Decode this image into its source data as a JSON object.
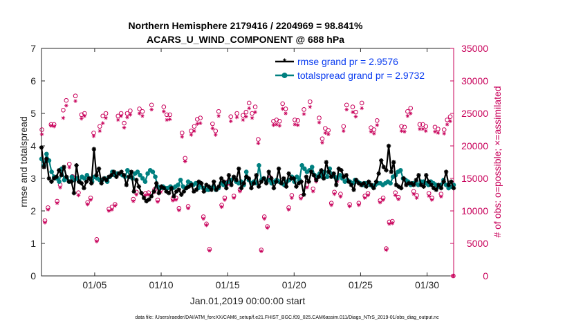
{
  "chart_data": {
    "type": "line",
    "title_line1": "Northern Hemisphere 2179416 / 2204969 = 98.841%",
    "title_line2": "ACARS_U_WIND_COMPONENT @ 688 hPa",
    "xlabel": "Jan.01,2019 00:00:00 start",
    "ylabel_left": "rmse and totalspread",
    "ylabel_right": "# of obs: o=possible; ×=assimilated",
    "x_range": [
      1.0,
      32.0
    ],
    "x_ticks": [
      5,
      10,
      15,
      20,
      25,
      30
    ],
    "x_tick_labels": [
      "01/05",
      "01/10",
      "01/15",
      "01/20",
      "01/25",
      "01/30"
    ],
    "ylim_left": [
      0,
      7
    ],
    "yticks_left": [
      "0",
      "1",
      "2",
      "3",
      "4",
      "5",
      "6",
      "7"
    ],
    "ylim_right": [
      0,
      35000
    ],
    "yticks_right": [
      "0",
      "5000",
      "10000",
      "15000",
      "20000",
      "25000",
      "30000",
      "35000"
    ],
    "left_color": "#262626",
    "right_color": "#c8005a",
    "legend_color": "#0a3cf0",
    "legend_position": "top-right",
    "footer": "data file: /Users/raeder/DAI/ATM_forcXX/CAM6_setup/f.e21.FHIST_BGC.f09_025.CAM6assim.011/Diags_NTrS_2019-01/obs_diag_output.nc",
    "series": [
      {
        "name": "rmse grand pr = 2.9576",
        "color": "#000000",
        "marker": "asterisk",
        "values": [
          3.95,
          3.35,
          3.6,
          3.0,
          2.9,
          3.0,
          3.05,
          3.25,
          3.1,
          3.35,
          3.05,
          2.9,
          2.9,
          2.55,
          3.4,
          2.9,
          2.85,
          2.7,
          2.9,
          3.0,
          2.85,
          3.9,
          3.1,
          3.3,
          2.85,
          3.0,
          2.95,
          3.05,
          3.1,
          3.2,
          3.05,
          3.15,
          3.2,
          3.1,
          2.8,
          3.05,
          3.2,
          2.6,
          2.95,
          2.75,
          2.55,
          2.4,
          2.3,
          2.35,
          2.45,
          2.6,
          2.85,
          2.55,
          2.75,
          2.7,
          2.6,
          2.55,
          2.7,
          2.45,
          2.6,
          2.65,
          2.5,
          2.6,
          2.7,
          2.75,
          2.8,
          2.6,
          2.65,
          2.9,
          2.85,
          2.6,
          2.8,
          2.75,
          2.65,
          2.9,
          2.65,
          2.75,
          3.0,
          2.9,
          2.7,
          3.1,
          2.8,
          3.05,
          2.95,
          3.3,
          2.7,
          2.85,
          3.05,
          3.0,
          2.7,
          2.85,
          3.1,
          2.75,
          2.9,
          3.0,
          2.85,
          3.2,
          3.0,
          2.7,
          2.9,
          3.3,
          2.85,
          3.0,
          2.75,
          3.15,
          3.0,
          3.0,
          2.75,
          2.85,
          2.9,
          2.5,
          3.05,
          2.9,
          3.2,
          3.1,
          2.95,
          3.05,
          3.25,
          3.0,
          3.5,
          3.2,
          3.05,
          3.15,
          2.8,
          3.3,
          3.25,
          3.05,
          3.1,
          2.9,
          2.8,
          2.65,
          2.95,
          2.85,
          2.8,
          2.85,
          2.75,
          2.9,
          2.8,
          2.7,
          2.9,
          3.15,
          3.55,
          3.35,
          3.25,
          4.0,
          3.2,
          3.5,
          2.8,
          2.75,
          2.7,
          3.0,
          2.8,
          2.85,
          2.85,
          2.8,
          2.95,
          3.1,
          2.8,
          2.75,
          3.1,
          2.9,
          2.8,
          2.7,
          2.65,
          2.8,
          2.7,
          2.9,
          3.2,
          2.8,
          2.9,
          2.7
        ]
      },
      {
        "name": "totalspread grand pr = 2.9732",
        "color": "#008080",
        "marker": "circle",
        "values": [
          3.6,
          3.4,
          3.75,
          3.55,
          3.2,
          3.05,
          3.0,
          2.9,
          3.3,
          2.95,
          3.0,
          2.9,
          3.05,
          2.95,
          3.0,
          2.9,
          3.05,
          3.0,
          3.1,
          3.0,
          2.9,
          3.05,
          3.0,
          2.95,
          2.95,
          3.0,
          2.9,
          3.05,
          3.2,
          3.1,
          3.15,
          3.15,
          3.1,
          3.05,
          3.25,
          3.05,
          3.0,
          3.15,
          3.2,
          3.1,
          3.0,
          2.9,
          3.15,
          3.25,
          3.2,
          3.05,
          2.75,
          2.7,
          2.75,
          2.7,
          2.7,
          2.75,
          2.7,
          2.75,
          2.8,
          2.95,
          2.75,
          2.7,
          2.9,
          2.85,
          2.8,
          2.85,
          2.7,
          2.8,
          2.7,
          2.65,
          2.65,
          2.7,
          2.75,
          2.65,
          2.7,
          2.85,
          2.8,
          2.85,
          2.9,
          2.95,
          3.0,
          2.9,
          2.85,
          2.9,
          2.8,
          3.2,
          2.95,
          2.85,
          2.9,
          2.85,
          3.4,
          2.95,
          3.0,
          2.9,
          2.95,
          2.85,
          2.9,
          2.95,
          2.9,
          2.85,
          2.8,
          2.9,
          2.95,
          3.05,
          2.9,
          3.05,
          2.95,
          3.4,
          3.3,
          3.2,
          3.25,
          3.35,
          3.1,
          3.05,
          3.15,
          3.05,
          3.2,
          3.05,
          3.3,
          3.1,
          3.05,
          3.0,
          3.1,
          3.0,
          2.9,
          2.95,
          2.9,
          2.85,
          2.95,
          2.9,
          2.85,
          2.8,
          2.85,
          2.85,
          2.8,
          2.75,
          2.8,
          2.85,
          2.85,
          2.8,
          2.85,
          2.9,
          2.85,
          3.05,
          3.1,
          3.2,
          3.25,
          3.0,
          2.95,
          2.9,
          2.8,
          2.85,
          2.85,
          2.8,
          2.9,
          2.9,
          2.85,
          2.8,
          2.9,
          2.85,
          2.8,
          2.75,
          2.8,
          2.95,
          2.8,
          2.7,
          2.75,
          2.8
        ]
      }
    ],
    "obs_possible": [
      22500,
      8500,
      10500,
      23300,
      23300,
      11500,
      14000,
      25500,
      27000,
      17200,
      15300,
      27700,
      12800,
      24800,
      25000,
      11300,
      12000,
      22000,
      5600,
      23000,
      24600,
      25000,
      10300,
      10600,
      11000,
      24600,
      25000,
      23500,
      25000,
      25400,
      11800,
      12900,
      25700,
      25300,
      12700,
      12800,
      26300,
      13300,
      11700,
      13300,
      26000,
      24800,
      24800,
      11900,
      12000,
      10400,
      22000,
      18100,
      10700,
      22300,
      23000,
      24100,
      24300,
      9100,
      8000,
      4100,
      23400,
      22300,
      25300,
      10900,
      12000,
      14500,
      24500,
      12300,
      25000,
      13300,
      24700,
      25200,
      26600,
      25000,
      26000,
      21000,
      4000,
      9100,
      7600,
      15100,
      23800,
      24000,
      23800,
      26500,
      25700,
      10500,
      12400,
      24000,
      23900,
      12200,
      25600,
      14000,
      26800,
      13400,
      15000,
      24300,
      21100,
      22700,
      22400,
      11200,
      12900,
      15100,
      12600,
      23000,
      26300,
      11000,
      26000,
      25200,
      11200,
      26600,
      12300,
      12700,
      22800,
      22500,
      23900,
      11600,
      12000,
      4200,
      8300,
      8400,
      12800,
      12100,
      23000,
      22900,
      25300,
      25800,
      13000,
      12400,
      23300,
      23300,
      23000,
      12700,
      12000,
      22900,
      22600,
      12600,
      22500,
      24000,
      24500,
      0
    ],
    "obs_assimilated": [
      21800,
      8200,
      10200,
      23100,
      23000,
      11200,
      13600,
      24300,
      26200,
      16700,
      14900,
      26900,
      12400,
      24200,
      24600,
      11000,
      11700,
      21500,
      5300,
      22300,
      23500,
      24300,
      10000,
      10200,
      10800,
      24000,
      24600,
      22800,
      24400,
      24800,
      11500,
      12500,
      25000,
      24600,
      12400,
      12500,
      25600,
      12900,
      11400,
      12900,
      25300,
      24000,
      24100,
      11600,
      11700,
      10100,
      21400,
      17600,
      10400,
      21700,
      22300,
      23400,
      23500,
      8800,
      7800,
      3900,
      22700,
      21700,
      24600,
      10600,
      11700,
      14100,
      23800,
      12000,
      24400,
      13000,
      24000,
      24500,
      25800,
      24300,
      25200,
      20400,
      3800,
      8800,
      7400,
      14600,
      23200,
      23300,
      23100,
      25700,
      25000,
      10200,
      12000,
      23300,
      23200,
      11900,
      24900,
      13600,
      26000,
      13000,
      14500,
      23600,
      20500,
      22000,
      21800,
      10900,
      12600,
      14600,
      12200,
      22300,
      25600,
      10700,
      25200,
      24500,
      10900,
      25800,
      12000,
      12400,
      22200,
      21900,
      23200,
      11300,
      11700,
      4000,
      8000,
      8100,
      12400,
      11800,
      22300,
      22200,
      24600,
      25000,
      12600,
      12000,
      22600,
      22600,
      22300,
      12300,
      11700,
      22200,
      22000,
      12200,
      21900,
      23300,
      23800,
      0
    ]
  }
}
